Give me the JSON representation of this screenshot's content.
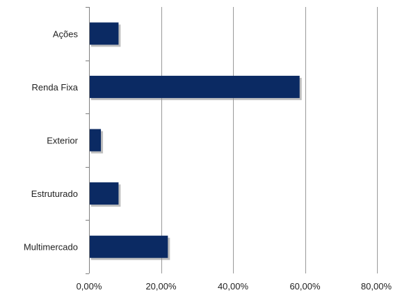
{
  "chart_data": {
    "type": "bar",
    "orientation": "horizontal",
    "title": "",
    "xlabel": "",
    "ylabel": "",
    "categories": [
      "Ações",
      "Renda Fixa",
      "Exterior",
      "Estruturado",
      "Multimercado"
    ],
    "values": [
      8.2,
      58.5,
      3.3,
      8.2,
      21.9
    ],
    "value_unit": "percent",
    "xlim": [
      0,
      80
    ],
    "xticks": [
      0,
      20,
      40,
      60,
      80
    ],
    "xtick_labels": [
      "0,00%",
      "20,00%",
      "40,00%",
      "60,00%",
      "80,00%"
    ],
    "grid": "vertical",
    "legend": "none",
    "colors": {
      "bar": "#0b2a63",
      "grid": "#999999",
      "axis": "#7f7f7f",
      "shadow": "#8a8a8a"
    }
  }
}
